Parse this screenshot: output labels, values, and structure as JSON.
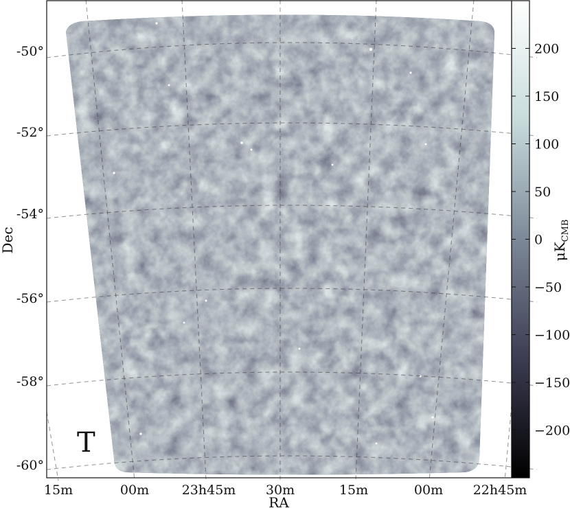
{
  "panel_label": "T",
  "map": {
    "xlabel": "RA",
    "ylabel": "Dec",
    "ra_ticks": [
      "15m",
      "00m",
      "23h45m",
      "30m",
      "15m",
      "00m",
      "22h45m"
    ],
    "dec_ticks": [
      "-50°",
      "-52°",
      "-54°",
      "-56°",
      "-58°",
      "-60°"
    ],
    "grid": true,
    "colormap": "bone",
    "colors": {
      "dark": "#0a0a12",
      "mid": "#5c6478",
      "light": "#f8fbfb"
    }
  },
  "colorbar": {
    "label_main": "μK",
    "label_sub": "CMB",
    "range": [
      -250,
      250
    ],
    "ticks": [
      "200",
      "150",
      "100",
      "50",
      "0",
      "−50",
      "−100",
      "−150",
      "−200"
    ],
    "tick_values": [
      200,
      150,
      100,
      50,
      0,
      -50,
      -100,
      -150,
      -200
    ]
  }
}
